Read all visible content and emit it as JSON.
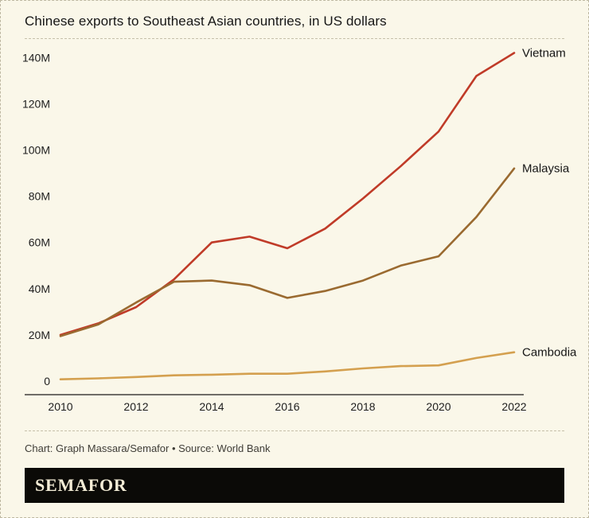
{
  "title": "Chinese exports to Southeast Asian countries, in US dollars",
  "credit": "Chart: Graph Massara/Semafor • Source: World Bank",
  "logo": "SEMAFOR",
  "colors": {
    "background": "#faf7e9",
    "axis": "#1a1a1a",
    "separator": "#c6c0aa",
    "logo_bg": "#0b0a07",
    "logo_text": "#f3ecd6"
  },
  "chart_data": {
    "type": "line",
    "title": "Chinese exports to Southeast Asian countries, in US dollars",
    "xlabel": "",
    "ylabel": "",
    "x": [
      2010,
      2011,
      2012,
      2013,
      2014,
      2015,
      2016,
      2017,
      2018,
      2019,
      2020,
      2021,
      2022
    ],
    "series": [
      {
        "name": "Vietnam",
        "color": "#c03b28",
        "values": [
          20,
          25,
          32,
          44,
          60,
          62.5,
          57.5,
          66,
          79,
          93,
          108,
          132,
          142
        ]
      },
      {
        "name": "Malaysia",
        "color": "#9a6a30",
        "values": [
          19.5,
          24.5,
          34,
          43,
          43.5,
          41.5,
          36,
          39,
          43.5,
          50,
          54,
          71,
          92
        ]
      },
      {
        "name": "Cambodia",
        "color": "#d4a04f",
        "values": [
          0.8,
          1.2,
          1.8,
          2.5,
          2.8,
          3.2,
          3.2,
          4.2,
          5.5,
          6.5,
          6.8,
          10,
          12.5
        ]
      }
    ],
    "yticks": [
      0,
      20,
      40,
      60,
      80,
      100,
      120,
      140
    ],
    "ytick_labels": [
      "0",
      "20M",
      "40M",
      "60M",
      "80M",
      "100M",
      "120M",
      "140M"
    ],
    "xticks": [
      2010,
      2012,
      2014,
      2016,
      2018,
      2020,
      2022
    ],
    "xlim": [
      2010,
      2022
    ],
    "ylim": [
      0,
      148
    ],
    "grid": false,
    "legend_position": "right-end-of-line"
  }
}
